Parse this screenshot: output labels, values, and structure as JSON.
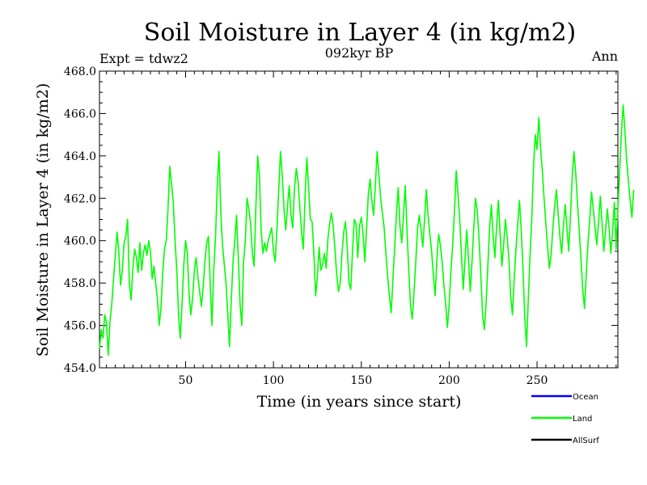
{
  "chart_data": {
    "type": "line",
    "title": "Soil Moisture in Layer 4 (in kg/m2)",
    "subtitle": "092kyr BP",
    "left_note": "Expt = tdwz2",
    "right_note": "Ann",
    "xlabel": "Time (in years since start)",
    "ylabel": "Soil Moisture in Layer 4 (in kg/m2)",
    "xlim": [
      1,
      296
    ],
    "ylim": [
      454.0,
      468.0
    ],
    "x_ticks": [
      50,
      100,
      150,
      200,
      250
    ],
    "x_tick_labels": [
      "50",
      "100",
      "150",
      "200",
      "250"
    ],
    "y_ticks": [
      454.0,
      456.0,
      458.0,
      460.0,
      462.0,
      464.0,
      466.0,
      468.0
    ],
    "y_tick_labels": [
      "454.0",
      "456.0",
      "458.0",
      "460.0",
      "462.0",
      "464.0",
      "466.0",
      "468.0"
    ],
    "legend": [
      {
        "name": "Ocean",
        "color": "#0000ff"
      },
      {
        "name": "Land",
        "color": "#00ff00"
      },
      {
        "name": "AllSurf",
        "color": "#000000"
      }
    ],
    "series": [
      {
        "name": "Land",
        "color": "#00ff00",
        "x_start": 1,
        "x_step": 1,
        "values": [
          454.9,
          455.8,
          455.4,
          456.5,
          456.1,
          454.6,
          456.2,
          457.0,
          458.2,
          459.3,
          460.4,
          459.5,
          457.9,
          458.6,
          459.9,
          460.2,
          461.0,
          458.0,
          457.2,
          458.7,
          459.6,
          459.2,
          458.5,
          459.9,
          458.6,
          459.4,
          459.8,
          459.3,
          460.0,
          459.5,
          458.2,
          458.8,
          458.0,
          457.2,
          456.0,
          456.8,
          458.5,
          459.6,
          460.0,
          461.5,
          463.5,
          462.7,
          461.8,
          460.0,
          458.6,
          456.5,
          455.4,
          457.0,
          458.9,
          460.0,
          459.4,
          457.5,
          456.5,
          457.3,
          458.6,
          459.2,
          458.3,
          457.6,
          456.9,
          457.8,
          459.0,
          459.9,
          460.2,
          458.0,
          456.0,
          458.6,
          460.1,
          462.5,
          464.2,
          461.4,
          459.8,
          458.9,
          458.0,
          456.6,
          455.0,
          457.2,
          459.0,
          460.0,
          461.2,
          459.2,
          457.0,
          456.0,
          459.0,
          460.0,
          462.0,
          461.5,
          460.8,
          459.4,
          458.8,
          461.6,
          464.0,
          463.1,
          460.5,
          459.4,
          459.9,
          459.5,
          460.0,
          460.3,
          460.6,
          459.5,
          459.0,
          460.6,
          462.4,
          464.2,
          463.1,
          461.5,
          460.5,
          461.6,
          462.6,
          461.2,
          460.6,
          462.5,
          463.4,
          462.8,
          461.6,
          460.4,
          459.6,
          462.1,
          463.9,
          462.5,
          461.0,
          460.9,
          459.4,
          457.4,
          458.3,
          459.7,
          458.6,
          458.9,
          459.4,
          458.7,
          460.1,
          460.8,
          461.3,
          460.7,
          459.6,
          458.4,
          457.6,
          458.0,
          459.4,
          460.4,
          460.9,
          459.7,
          458.0,
          457.7,
          459.5,
          461.0,
          460.8,
          459.2,
          460.7,
          461.1,
          460.3,
          459.0,
          460.6,
          462.2,
          462.9,
          461.9,
          461.2,
          462.6,
          464.2,
          463.1,
          462.0,
          461.3,
          460.6,
          459.4,
          458.3,
          457.4,
          456.6,
          458.2,
          459.7,
          461.3,
          462.5,
          460.7,
          459.9,
          461.2,
          462.6,
          460.5,
          458.6,
          456.9,
          456.3,
          457.6,
          459.0,
          460.6,
          461.2,
          460.5,
          459.7,
          461.0,
          462.4,
          461.2,
          460.3,
          459.5,
          458.4,
          457.4,
          459.1,
          460.3,
          459.8,
          459.0,
          457.9,
          457.0,
          455.9,
          457.0,
          458.6,
          459.8,
          461.4,
          463.3,
          462.2,
          461.0,
          459.3,
          457.7,
          459.1,
          460.5,
          459.1,
          457.6,
          459.0,
          460.6,
          462.0,
          461.4,
          460.1,
          458.4,
          456.5,
          455.8,
          457.0,
          458.8,
          460.6,
          461.7,
          460.2,
          459.2,
          460.7,
          461.9,
          460.3,
          458.8,
          459.8,
          461.0,
          460.2,
          459.1,
          457.4,
          456.5,
          458.2,
          459.6,
          460.8,
          461.9,
          460.5,
          458.7,
          456.4,
          455.0,
          457.2,
          459.3,
          461.0,
          463.5,
          465.0,
          464.3,
          465.8,
          464.4,
          463.3,
          462.0,
          460.8,
          459.7,
          458.7,
          459.3,
          460.6,
          461.6,
          462.4,
          461.3,
          460.2,
          459.4,
          460.7,
          461.7,
          460.6,
          459.5,
          461.1,
          463.0,
          464.2,
          463.2,
          461.8,
          460.5,
          459.1,
          457.7,
          456.8,
          458.4,
          459.9,
          461.0,
          462.3,
          461.5,
          460.6,
          459.8,
          460.9,
          462.1,
          460.8,
          459.5,
          460.5,
          461.5,
          460.6,
          459.4,
          460.5,
          461.8,
          459.6,
          461.5,
          463.3,
          465.1,
          466.4,
          465.2,
          463.8,
          462.8,
          461.9,
          461.1,
          462.4
        ]
      }
    ]
  }
}
